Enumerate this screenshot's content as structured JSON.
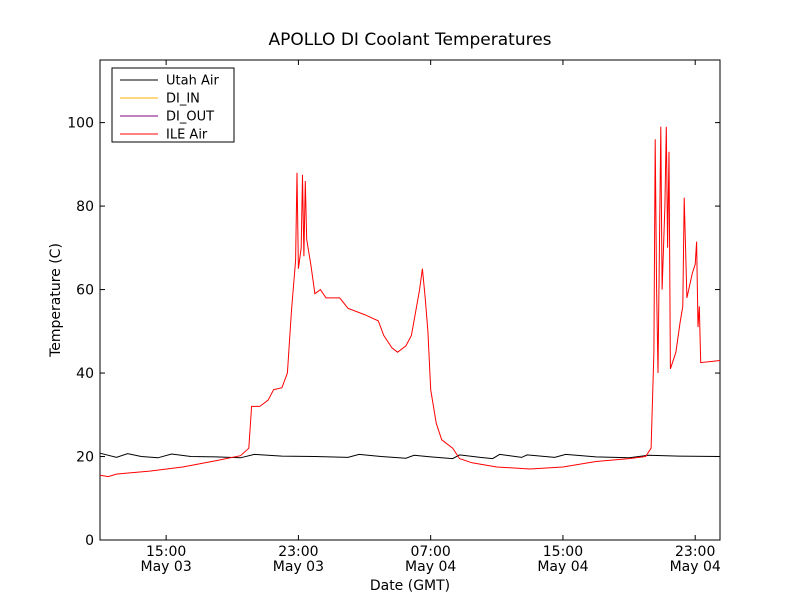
{
  "chart_data": {
    "type": "line",
    "title": "APOLLO DI Coolant Temperatures",
    "xlabel": "Date (GMT)",
    "ylabel": "Temperature (C)",
    "ylim": [
      0,
      115
    ],
    "xlim": [
      "2013-05-03T11:00",
      "2013-05-05T00:30"
    ],
    "yticks": [
      0,
      20,
      40,
      60,
      80,
      100
    ],
    "xticks": [
      {
        "t": "2013-05-03T15:00",
        "time": "15:00",
        "date": "May 03"
      },
      {
        "t": "2013-05-03T23:00",
        "time": "23:00",
        "date": "May 03"
      },
      {
        "t": "2013-05-04T07:00",
        "time": "07:00",
        "date": "May 04"
      },
      {
        "t": "2013-05-04T15:00",
        "time": "15:00",
        "date": "May 04"
      },
      {
        "t": "2013-05-04T23:00",
        "time": "23:00",
        "date": "May 04"
      }
    ],
    "grid": false,
    "legend_position": "top-left",
    "series": [
      {
        "name": "Utah Air",
        "color": "#000000",
        "points": [
          [
            "2013-05-03T11:00",
            20.8
          ],
          [
            "2013-05-03T12:00",
            19.8
          ],
          [
            "2013-05-03T12:40",
            20.7
          ],
          [
            "2013-05-03T13:30",
            20.0
          ],
          [
            "2013-05-03T14:30",
            19.7
          ],
          [
            "2013-05-03T15:20",
            20.6
          ],
          [
            "2013-05-03T16:30",
            20.0
          ],
          [
            "2013-05-03T18:00",
            19.9
          ],
          [
            "2013-05-03T19:30",
            19.7
          ],
          [
            "2013-05-03T20:20",
            20.5
          ],
          [
            "2013-05-03T22:00",
            20.1
          ],
          [
            "2013-05-04T00:00",
            20.0
          ],
          [
            "2013-05-04T02:00",
            19.8
          ],
          [
            "2013-05-04T02:40",
            20.5
          ],
          [
            "2013-05-04T04:00",
            20.0
          ],
          [
            "2013-05-04T05:30",
            19.6
          ],
          [
            "2013-05-04T06:00",
            20.3
          ],
          [
            "2013-05-04T07:00",
            19.9
          ],
          [
            "2013-05-04T08:20",
            19.5
          ],
          [
            "2013-05-04T08:45",
            20.4
          ],
          [
            "2013-05-04T10:00",
            19.8
          ],
          [
            "2013-05-04T10:45",
            19.5
          ],
          [
            "2013-05-04T11:10",
            20.5
          ],
          [
            "2013-05-04T12:30",
            19.8
          ],
          [
            "2013-05-04T12:50",
            20.4
          ],
          [
            "2013-05-04T14:30",
            19.8
          ],
          [
            "2013-05-04T15:10",
            20.5
          ],
          [
            "2013-05-04T17:00",
            19.9
          ],
          [
            "2013-05-04T19:00",
            19.7
          ],
          [
            "2013-05-04T20:10",
            20.3
          ],
          [
            "2013-05-04T22:00",
            20.1
          ],
          [
            "2013-05-05T00:30",
            20.0
          ]
        ]
      },
      {
        "name": "DI_IN",
        "color": "#ffb000",
        "points": []
      },
      {
        "name": "DI_OUT",
        "color": "#800080",
        "points": []
      },
      {
        "name": "ILE Air",
        "color": "#ff0000",
        "points": [
          [
            "2013-05-03T11:00",
            15.5
          ],
          [
            "2013-05-03T11:30",
            15.2
          ],
          [
            "2013-05-03T12:00",
            15.8
          ],
          [
            "2013-05-03T14:00",
            16.5
          ],
          [
            "2013-05-03T16:00",
            17.5
          ],
          [
            "2013-05-03T18:00",
            19.0
          ],
          [
            "2013-05-03T19:30",
            20.2
          ],
          [
            "2013-05-03T20:00",
            22.0
          ],
          [
            "2013-05-03T20:10",
            32.0
          ],
          [
            "2013-05-03T20:40",
            32.0
          ],
          [
            "2013-05-03T21:10",
            33.5
          ],
          [
            "2013-05-03T21:30",
            36.0
          ],
          [
            "2013-05-03T22:00",
            36.5
          ],
          [
            "2013-05-03T22:20",
            40.0
          ],
          [
            "2013-05-03T22:35",
            55.0
          ],
          [
            "2013-05-03T22:50",
            67.0
          ],
          [
            "2013-05-03T22:55",
            88.0
          ],
          [
            "2013-05-03T23:00",
            65.0
          ],
          [
            "2013-05-03T23:10",
            70.0
          ],
          [
            "2013-05-03T23:15",
            87.5
          ],
          [
            "2013-05-03T23:20",
            68.0
          ],
          [
            "2013-05-03T23:25",
            86.0
          ],
          [
            "2013-05-03T23:30",
            72.0
          ],
          [
            "2013-05-03T23:45",
            66.0
          ],
          [
            "2013-05-04T00:00",
            59.0
          ],
          [
            "2013-05-04T00:20",
            60.0
          ],
          [
            "2013-05-04T00:40",
            58.0
          ],
          [
            "2013-05-04T01:30",
            58.0
          ],
          [
            "2013-05-04T02:00",
            55.5
          ],
          [
            "2013-05-04T03:00",
            54.0
          ],
          [
            "2013-05-04T03:50",
            52.5
          ],
          [
            "2013-05-04T04:10",
            49.0
          ],
          [
            "2013-05-04T04:40",
            46.0
          ],
          [
            "2013-05-04T05:00",
            45.0
          ],
          [
            "2013-05-04T05:30",
            46.5
          ],
          [
            "2013-05-04T05:50",
            49.0
          ],
          [
            "2013-05-04T06:20",
            60.0
          ],
          [
            "2013-05-04T06:30",
            65.0
          ],
          [
            "2013-05-04T06:40",
            58.0
          ],
          [
            "2013-05-04T06:50",
            50.0
          ],
          [
            "2013-05-04T07:00",
            36.0
          ],
          [
            "2013-05-04T07:20",
            28.0
          ],
          [
            "2013-05-04T07:40",
            24.0
          ],
          [
            "2013-05-04T08:20",
            22.0
          ],
          [
            "2013-05-04T08:45",
            19.5
          ],
          [
            "2013-05-04T09:30",
            18.5
          ],
          [
            "2013-05-04T11:00",
            17.5
          ],
          [
            "2013-05-04T13:00",
            17.0
          ],
          [
            "2013-05-04T15:00",
            17.5
          ],
          [
            "2013-05-04T17:00",
            18.8
          ],
          [
            "2013-05-04T19:00",
            19.5
          ],
          [
            "2013-05-04T20:00",
            20.0
          ],
          [
            "2013-05-04T20:20",
            22.0
          ],
          [
            "2013-05-04T20:30",
            45.0
          ],
          [
            "2013-05-04T20:35",
            96.0
          ],
          [
            "2013-05-04T20:40",
            60.0
          ],
          [
            "2013-05-04T20:45",
            40.0
          ],
          [
            "2013-05-04T20:55",
            99.0
          ],
          [
            "2013-05-04T21:00",
            60.0
          ],
          [
            "2013-05-04T21:10",
            80.0
          ],
          [
            "2013-05-04T21:15",
            99.0
          ],
          [
            "2013-05-04T21:20",
            70.0
          ],
          [
            "2013-05-04T21:25",
            93.0
          ],
          [
            "2013-05-04T21:30",
            41.0
          ],
          [
            "2013-05-04T21:50",
            45.0
          ],
          [
            "2013-05-04T22:05",
            52.0
          ],
          [
            "2013-05-04T22:15",
            56.0
          ],
          [
            "2013-05-04T22:20",
            82.0
          ],
          [
            "2013-05-04T22:30",
            58.0
          ],
          [
            "2013-05-04T22:50",
            64.0
          ],
          [
            "2013-05-04T23:00",
            66.0
          ],
          [
            "2013-05-04T23:05",
            71.5
          ],
          [
            "2013-05-04T23:10",
            51.0
          ],
          [
            "2013-05-04T23:15",
            56.0
          ],
          [
            "2013-05-04T23:20",
            42.5
          ],
          [
            "2013-05-05T00:30",
            43.0
          ]
        ]
      }
    ]
  }
}
